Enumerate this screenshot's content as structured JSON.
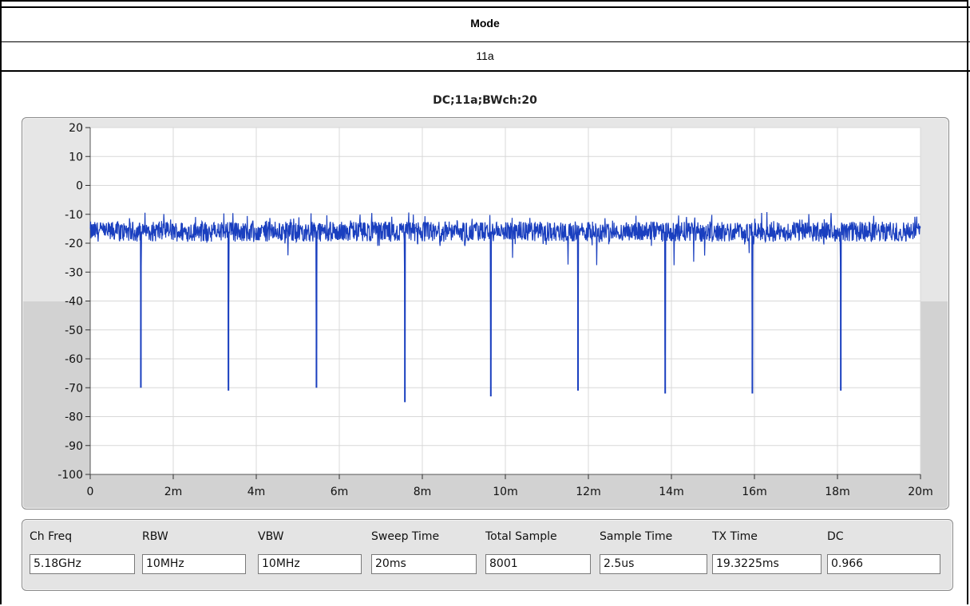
{
  "table": {
    "header": "Mode",
    "value": "11a"
  },
  "chart_data": {
    "type": "line",
    "title": "DC;11a;BWch:20",
    "xlabel": "",
    "ylabel": "",
    "xlim": [
      0,
      0.02
    ],
    "ylim": [
      -100,
      20
    ],
    "x_ticks": [
      "0",
      "2m",
      "4m",
      "6m",
      "8m",
      "10m",
      "12m",
      "14m",
      "16m",
      "18m",
      "20m"
    ],
    "y_ticks": [
      "20",
      "10",
      "0",
      "-10",
      "-20",
      "-30",
      "-40",
      "-50",
      "-60",
      "-70",
      "-80",
      "-90",
      "-100"
    ],
    "grid": true,
    "color": "#1a3fbf",
    "series": [
      {
        "baseline_level": -16,
        "noise_range": [
          -21,
          -9
        ],
        "dips": [
          {
            "x": 0.00122,
            "min": -70
          },
          {
            "x": 0.00333,
            "min": -71
          },
          {
            "x": 0.00545,
            "min": -70
          },
          {
            "x": 0.00758,
            "min": -75
          },
          {
            "x": 0.00965,
            "min": -73
          },
          {
            "x": 0.01175,
            "min": -71
          },
          {
            "x": 0.01385,
            "min": -72
          },
          {
            "x": 0.01595,
            "min": -72
          },
          {
            "x": 0.01808,
            "min": -71
          }
        ]
      }
    ]
  },
  "info": {
    "fields": [
      {
        "label": "Ch Freq",
        "value": "5.18GHz"
      },
      {
        "label": "RBW",
        "value": "10MHz"
      },
      {
        "label": "VBW",
        "value": "10MHz"
      },
      {
        "label": "Sweep Time",
        "value": "20ms"
      },
      {
        "label": "Total Sample",
        "value": "8001"
      },
      {
        "label": "Sample Time",
        "value": "2.5us"
      },
      {
        "label": "TX Time",
        "value": "19.3225ms"
      },
      {
        "label": "DC",
        "value": "0.966"
      }
    ]
  }
}
